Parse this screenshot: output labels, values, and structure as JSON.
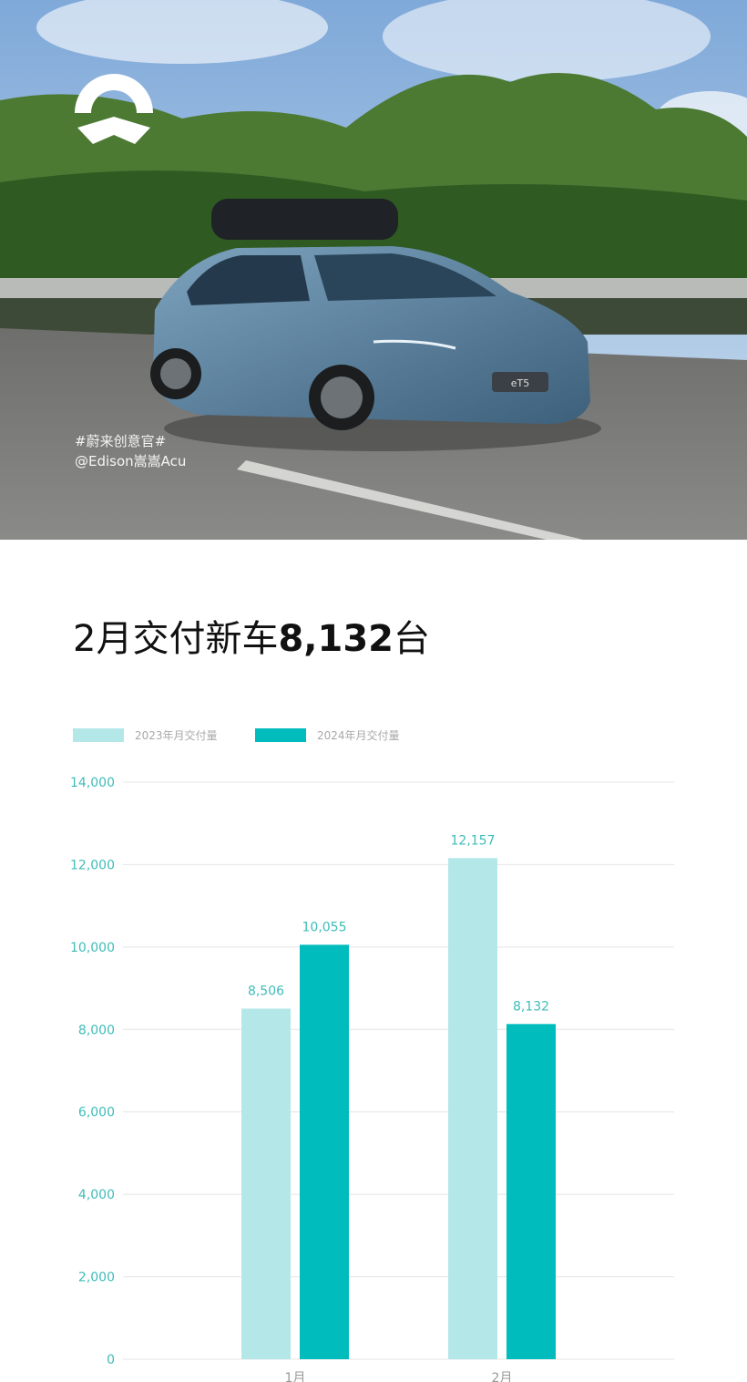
{
  "photo": {
    "hashtag": "#蔚来创意官#",
    "credit": "@Edison嵩嵩Acu",
    "logo": "NIO",
    "plate": "eT5"
  },
  "headline": {
    "prefix": "2月交付新车",
    "number": "8,132",
    "suffix": "台"
  },
  "colors": {
    "series_2023": "#b4e7e8",
    "series_2024": "#00bcbc",
    "axis_text": "#3fbcb8"
  },
  "chart_data": {
    "type": "bar",
    "categories": [
      "1月",
      "2月"
    ],
    "series": [
      {
        "name": "2023年月交付量",
        "values": [
          8506,
          12157
        ],
        "labels": [
          "8,506",
          "12,157"
        ]
      },
      {
        "name": "2024年月交付量",
        "values": [
          10055,
          8132
        ],
        "labels": [
          "10,055",
          "8,132"
        ]
      }
    ],
    "ylim": [
      0,
      14000
    ],
    "yticks": [
      0,
      2000,
      4000,
      6000,
      8000,
      10000,
      12000,
      14000
    ],
    "ytick_labels": [
      "0",
      "2,000",
      "4,000",
      "6,000",
      "8,000",
      "10,000",
      "12,000",
      "14,000"
    ],
    "grid": true,
    "legend": "top-left"
  }
}
